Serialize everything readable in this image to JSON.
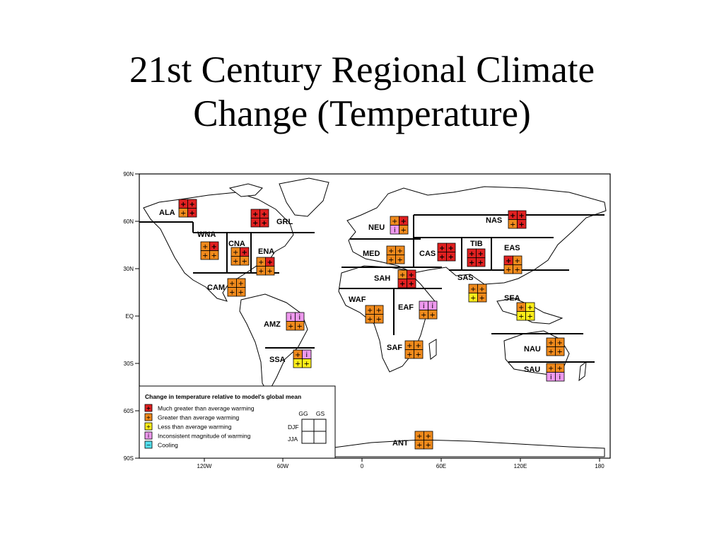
{
  "title": {
    "line1": "21st Century Regional Climate",
    "line2": "Change (Temperature)"
  },
  "lat_labels": [
    "90N",
    "60N",
    "30N",
    "EQ",
    "30S",
    "60S",
    "90S"
  ],
  "lon_labels": [
    "120W",
    "60W",
    "0",
    "60E",
    "120E",
    "180"
  ],
  "seasons": {
    "gg": "GG",
    "gs": "GS",
    "djf": "DJF",
    "jja": "JJA"
  },
  "legend": {
    "title": "Change in temperature relative to model's global mean",
    "items": [
      {
        "key": "much",
        "symbol": "+",
        "color": "#e02020",
        "text": "Much greater than average warming"
      },
      {
        "key": "greater",
        "symbol": "+",
        "color": "#f08a1c",
        "text": "Greater than average warming"
      },
      {
        "key": "less",
        "symbol": "+",
        "color": "#ffee1a",
        "text": "Less than average warming"
      },
      {
        "key": "inconsistent",
        "symbol": "i",
        "color": "#ee99ee",
        "text": "Inconsistent magnitude of warming"
      },
      {
        "key": "cooling",
        "symbol": "−",
        "color": "#55e0ee",
        "text": "Cooling"
      }
    ]
  },
  "regions": [
    {
      "name": "ALA",
      "cells": [
        "much",
        "much",
        "greater",
        "much"
      ]
    },
    {
      "name": "GRL",
      "cells": [
        "much",
        "much",
        "much",
        "much"
      ]
    },
    {
      "name": "WNA",
      "cells": [
        "greater",
        "much",
        "greater",
        "greater"
      ]
    },
    {
      "name": "CNA",
      "cells": [
        "greater",
        "much",
        "greater",
        "greater"
      ]
    },
    {
      "name": "ENA",
      "cells": [
        "greater",
        "much",
        "greater",
        "greater"
      ]
    },
    {
      "name": "CAM",
      "cells": [
        "greater",
        "greater",
        "greater",
        "greater"
      ]
    },
    {
      "name": "AMZ",
      "cells": [
        "inconsistent",
        "inconsistent",
        "greater",
        "greater"
      ]
    },
    {
      "name": "SSA",
      "cells": [
        "greater",
        "inconsistent",
        "less",
        "less"
      ]
    },
    {
      "name": "NEU",
      "cells": [
        "greater",
        "much",
        "inconsistent",
        "greater"
      ]
    },
    {
      "name": "MED",
      "cells": [
        "greater",
        "greater",
        "greater",
        "greater"
      ]
    },
    {
      "name": "SAH",
      "cells": [
        "greater",
        "much",
        "much",
        "much"
      ]
    },
    {
      "name": "WAF",
      "cells": [
        "greater",
        "greater",
        "greater",
        "greater"
      ]
    },
    {
      "name": "EAF",
      "cells": [
        "inconsistent",
        "inconsistent",
        "greater",
        "greater"
      ]
    },
    {
      "name": "SAF",
      "cells": [
        "greater",
        "greater",
        "greater",
        "greater"
      ]
    },
    {
      "name": "CAS",
      "cells": [
        "much",
        "much",
        "much",
        "much"
      ]
    },
    {
      "name": "TIB",
      "cells": [
        "much",
        "much",
        "much",
        "much"
      ]
    },
    {
      "name": "NAS",
      "cells": [
        "much",
        "much",
        "greater",
        "much"
      ]
    },
    {
      "name": "EAS",
      "cells": [
        "much",
        "greater",
        "greater",
        "greater"
      ]
    },
    {
      "name": "SAS",
      "cells": [
        "greater",
        "greater",
        "less",
        "greater"
      ]
    },
    {
      "name": "SEA",
      "cells": [
        "greater",
        "less",
        "less",
        "less"
      ]
    },
    {
      "name": "NAU",
      "cells": [
        "greater",
        "greater",
        "greater",
        "greater"
      ]
    },
    {
      "name": "SAU",
      "cells": [
        "greater",
        "greater",
        "inconsistent",
        "inconsistent"
      ]
    },
    {
      "name": "ANT",
      "cells": [
        "greater",
        "greater",
        "greater",
        "greater"
      ]
    }
  ]
}
